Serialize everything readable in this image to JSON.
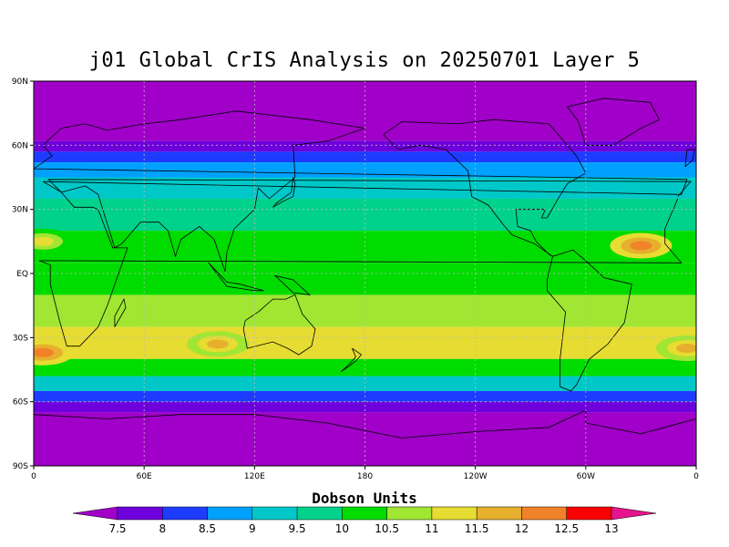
{
  "title": "j01 Global CrIS Analysis on 20250701 Layer 5",
  "colorbar_units": "Dobson Units",
  "lat_labels": [
    "90N",
    "60N",
    "30N",
    "EQ",
    "30S",
    "60S",
    "90S"
  ],
  "lon_labels": [
    "0",
    "60E",
    "120E",
    "180",
    "120W",
    "60W",
    "0"
  ],
  "colorbar": {
    "levels": [
      "7.5",
      "8",
      "8.5",
      "9",
      "9.5",
      "10",
      "10.5",
      "11",
      "11.5",
      "12",
      "12.5",
      "13"
    ],
    "colors": [
      "#a000c8",
      "#6e00dc",
      "#1e3cff",
      "#00a0ff",
      "#00c8c8",
      "#00d28c",
      "#00dc00",
      "#a0e632",
      "#e6dc32",
      "#e6af2d",
      "#f08228",
      "#fa0000",
      "#e6148c"
    ]
  },
  "chart_data": {
    "type": "heatmap",
    "title": "j01 Global CrIS Analysis on 20250701 Layer 5",
    "colorbar_label": "Dobson Units",
    "lat_range": [
      -90,
      90
    ],
    "lon_range": [
      0,
      360
    ],
    "grid": true,
    "zonal_bands": [
      {
        "lat_min": 62,
        "lat_max": 90,
        "value": 7.3
      },
      {
        "lat_min": 57,
        "lat_max": 62,
        "value": 7.8
      },
      {
        "lat_min": 52,
        "lat_max": 57,
        "value": 8.3
      },
      {
        "lat_min": 45,
        "lat_max": 52,
        "value": 8.8
      },
      {
        "lat_min": 35,
        "lat_max": 45,
        "value": 9.3
      },
      {
        "lat_min": 20,
        "lat_max": 35,
        "value": 9.8
      },
      {
        "lat_min": 5,
        "lat_max": 20,
        "value": 10.3
      },
      {
        "lat_min": -10,
        "lat_max": 5,
        "value": 10.3
      },
      {
        "lat_min": -25,
        "lat_max": -10,
        "value": 10.8
      },
      {
        "lat_min": -40,
        "lat_max": -25,
        "value": 11.2
      },
      {
        "lat_min": -48,
        "lat_max": -40,
        "value": 10.3
      },
      {
        "lat_min": -55,
        "lat_max": -48,
        "value": 9.3
      },
      {
        "lat_min": -60,
        "lat_max": -55,
        "value": 8.3
      },
      {
        "lat_min": -65,
        "lat_max": -60,
        "value": 7.8
      },
      {
        "lat_min": -90,
        "lat_max": -65,
        "value": 7.3
      }
    ],
    "hotspots": [
      {
        "lon": 5,
        "lat": -37,
        "value": 12.3
      },
      {
        "lon": 330,
        "lat": 13,
        "value": 12.3
      },
      {
        "lon": 100,
        "lat": -33,
        "value": 11.8
      },
      {
        "lon": 5,
        "lat": 15,
        "value": 11.3
      },
      {
        "lon": 355,
        "lat": -35,
        "value": 11.8
      }
    ]
  }
}
